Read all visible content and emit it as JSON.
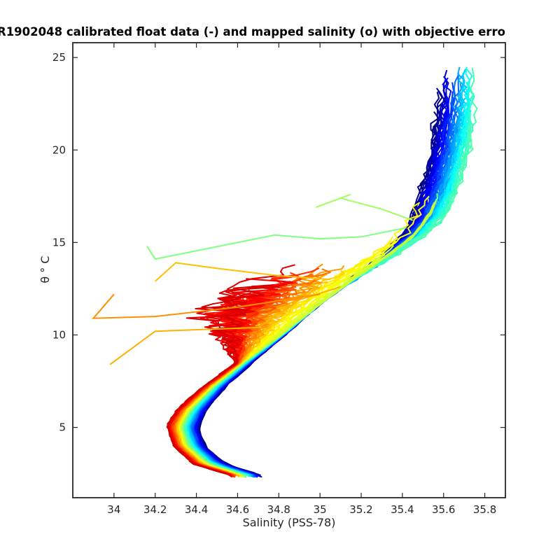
{
  "chart_data": {
    "type": "line",
    "title": "R1902048 calibrated float data (-) and mapped salinity (o) with objective erro",
    "xlabel": "Salinity (PSS-78)",
    "ylabel": "θ ° C",
    "xlim": [
      33.8,
      35.9
    ],
    "ylim": [
      1.2,
      25.8
    ],
    "x_ticks": [
      "34",
      "34.2",
      "34.4",
      "34.6",
      "34.8",
      "35",
      "35.2",
      "35.4",
      "35.6",
      "35.8"
    ],
    "y_ticks": [
      "5",
      "10",
      "15",
      "20",
      "25"
    ],
    "colormap": "jet (profile index: dark blue = first profiles, dark red = last profiles)",
    "grid": false,
    "legend": "none",
    "profile_count": 140,
    "series_representative": [
      {
        "name": "",
        "color": "#00008f",
        "x": [
          34.74,
          34.55,
          34.46,
          34.44,
          34.48,
          34.58,
          34.72,
          34.86,
          35.02,
          35.2,
          35.36,
          35.46,
          35.52,
          35.55,
          35.56,
          35.55,
          35.5
        ],
        "y": [
          2.4,
          3.2,
          4.2,
          5.0,
          6.0,
          7.2,
          8.6,
          10.0,
          11.6,
          13.0,
          14.2,
          15.2,
          16.5,
          18.0,
          20.0,
          22.0,
          23.5
        ]
      },
      {
        "name": "",
        "color": "#00ffff",
        "x": [
          34.7,
          34.52,
          34.43,
          34.4,
          34.44,
          34.54,
          34.68,
          34.84,
          35.0,
          35.18,
          35.34,
          35.46,
          35.54,
          35.6,
          35.66,
          35.7,
          35.72
        ],
        "y": [
          2.5,
          3.2,
          4.1,
          5.0,
          6.0,
          7.2,
          8.6,
          10.0,
          11.6,
          13.0,
          14.3,
          15.4,
          16.6,
          18.2,
          20.0,
          22.0,
          23.4
        ]
      },
      {
        "name": "",
        "color": "#ffff00",
        "x": [
          34.62,
          34.44,
          34.36,
          34.34,
          34.38,
          34.48,
          34.62,
          34.78,
          34.96,
          35.14,
          35.3,
          35.42
        ],
        "y": [
          2.6,
          3.4,
          4.3,
          5.2,
          6.2,
          7.4,
          8.8,
          10.2,
          11.8,
          13.1,
          14.2,
          15.0
        ]
      },
      {
        "name": "",
        "color": "#ff8000",
        "x": [
          34.66,
          34.38,
          34.3,
          34.28,
          34.32,
          34.42,
          34.56,
          34.72,
          34.9,
          35.08
        ],
        "y": [
          2.5,
          3.5,
          4.4,
          5.3,
          6.3,
          7.6,
          9.0,
          10.4,
          11.9,
          13.0
        ]
      },
      {
        "name": "",
        "color": "#7f0000",
        "x": [
          34.74,
          34.32,
          34.26,
          34.26,
          34.32,
          34.42,
          34.56,
          34.72,
          34.88
        ],
        "y": [
          2.3,
          3.6,
          4.5,
          5.4,
          6.4,
          7.6,
          9.0,
          10.4,
          11.5
        ]
      }
    ]
  }
}
